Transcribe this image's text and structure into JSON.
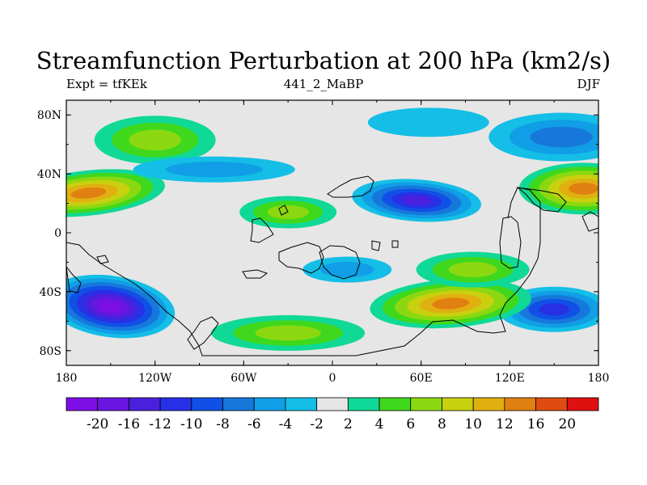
{
  "title": "Streamfunction Perturbation at 200 hPa (km2/s)",
  "left_string": "Expt = tfKEk",
  "center_string": "441_2_MaBP",
  "right_string": "DJF",
  "map": {
    "projection": "cylindrical equidistant",
    "lon_range": [
      -180,
      180
    ],
    "lat_range": [
      -90,
      90
    ],
    "lat_ticks": [
      "80N",
      "40N",
      "0",
      "40S",
      "80S"
    ],
    "lon_ticks": [
      "180",
      "120W",
      "60W",
      "0",
      "60E",
      "120E",
      "180"
    ],
    "background_color": "#e6e6e6"
  },
  "colorbar": {
    "levels": [
      "-20",
      "-16",
      "-12",
      "-10",
      "-8",
      "-6",
      "-4",
      "-2",
      "2",
      "4",
      "6",
      "8",
      "10",
      "12",
      "16",
      "20"
    ],
    "colors": [
      "#7d0ee6",
      "#6a16e0",
      "#4a20dc",
      "#2830e6",
      "#1050e6",
      "#1778dc",
      "#109ee6",
      "#14bee6",
      "#e6e6e6",
      "#10d896",
      "#40d81c",
      "#8cd810",
      "#c8d010",
      "#e0b010",
      "#e08010",
      "#e04c10",
      "#e01010"
    ]
  },
  "chart_data": {
    "type": "heatmap",
    "title": "Streamfunction Perturbation at 200 hPa (km2/s)",
    "variable": "Streamfunction Perturbation",
    "level": "200 hPa",
    "units": "km2/s",
    "experiment": "tfKEk",
    "case": "441_2_MaBP",
    "season": "DJF",
    "x_range": [
      -180,
      180
    ],
    "y_range": [
      -90,
      90
    ],
    "contour_levels": [
      -20,
      -16,
      -12,
      -10,
      -8,
      -6,
      -4,
      -2,
      2,
      4,
      6,
      8,
      10,
      12,
      16,
      20
    ],
    "features": [
      {
        "lon": -165,
        "lat": 27,
        "value": 14
      },
      {
        "lon": 170,
        "lat": 30,
        "value": 12
      },
      {
        "lon": -120,
        "lat": 63,
        "value": 7
      },
      {
        "lon": 57,
        "lat": 22,
        "value": -14
      },
      {
        "lon": 155,
        "lat": 65,
        "value": -7
      },
      {
        "lon": -150,
        "lat": -50,
        "value": -20
      },
      {
        "lon": 150,
        "lat": -52,
        "value": -11
      },
      {
        "lon": 80,
        "lat": -48,
        "value": 14
      },
      {
        "lon": -30,
        "lat": 14,
        "value": 6
      },
      {
        "lon": -30,
        "lat": -68,
        "value": 6
      },
      {
        "lon": 10,
        "lat": -25,
        "value": -4
      },
      {
        "lon": 95,
        "lat": -25,
        "value": 7
      },
      {
        "lon": -80,
        "lat": 43,
        "value": -5
      },
      {
        "lon": 65,
        "lat": 75,
        "value": -3
      }
    ]
  }
}
